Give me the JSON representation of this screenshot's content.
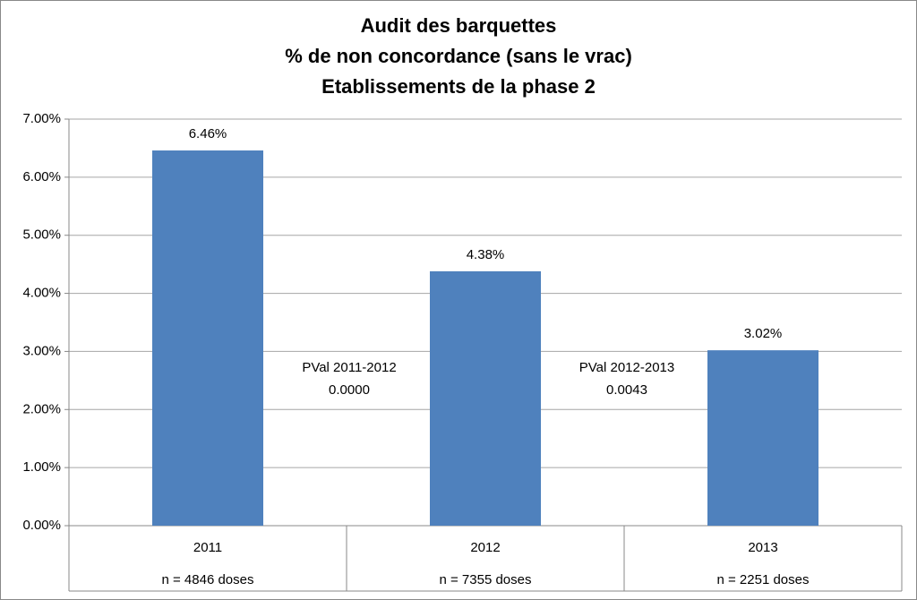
{
  "chart_data": {
    "type": "bar",
    "title": [
      "Audit des barquettes",
      "% de non concordance (sans le vrac)",
      "Etablissements de la phase 2"
    ],
    "categories": [
      "2011",
      "2012",
      "2013"
    ],
    "category_sublabels": [
      "n = 4846 doses",
      "n = 7355 doses",
      "n = 2251 doses"
    ],
    "values": [
      6.46,
      4.38,
      3.02
    ],
    "value_labels": [
      "6.46%",
      "4.38%",
      "3.02%"
    ],
    "color": "#4f81bd",
    "ylim": [
      0,
      7
    ],
    "yticks": [
      {
        "value": 0,
        "label": "0.00%"
      },
      {
        "value": 1,
        "label": "1.00%"
      },
      {
        "value": 2,
        "label": "2.00%"
      },
      {
        "value": 3,
        "label": "3.00%"
      },
      {
        "value": 4,
        "label": "4.00%"
      },
      {
        "value": 5,
        "label": "5.00%"
      },
      {
        "value": 6,
        "label": "6.00%"
      },
      {
        "value": 7,
        "label": "7.00%"
      }
    ],
    "grid": true,
    "annotations": [
      {
        "lines": [
          "PVal 2011-2012",
          "0.0000"
        ]
      },
      {
        "lines": [
          "PVal 2012-2013",
          "0.0043"
        ]
      }
    ]
  }
}
